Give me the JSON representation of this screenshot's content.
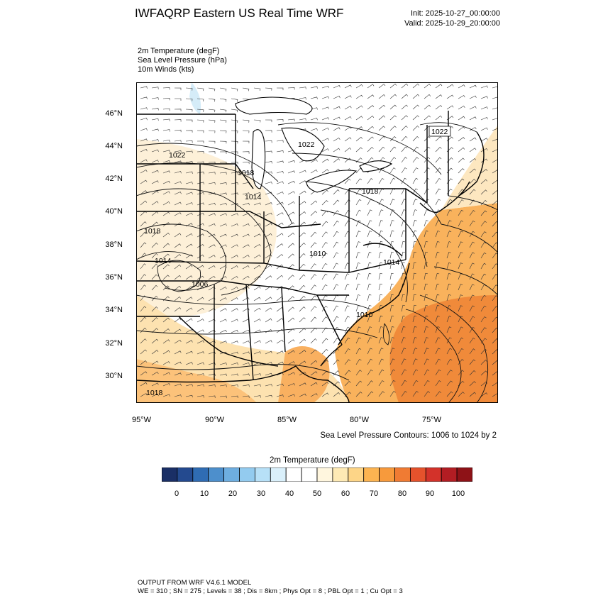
{
  "header": {
    "title": "IWFAQRP Eastern US Real Time WRF",
    "init": "Init: 2025-10-27_00:00:00",
    "valid": "Valid: 2025-10-29_20:00:00"
  },
  "fields": [
    "2m Temperature   (degF)",
    "Sea Level Pressure   (hPa)",
    "10m Winds   (kts)"
  ],
  "map": {
    "lat_labels": [
      "46°N",
      "44°N",
      "42°N",
      "40°N",
      "38°N",
      "36°N",
      "34°N",
      "32°N",
      "30°N"
    ],
    "lon_labels": [
      "95°W",
      "90°W",
      "85°W",
      "80°W",
      "75°W"
    ],
    "isobar_labels": [
      "1022",
      "1022",
      "1022",
      "1018",
      "1014",
      "1018",
      "1018",
      "1014",
      "1010",
      "1014",
      "1006",
      "1010",
      "1018"
    ],
    "colors": {
      "ocean_warm": "#f7a347",
      "ocean_hot": "#f08a3a",
      "land_mild": "#fbe3b4",
      "land_cool": "#ffffff",
      "cold": "#d5ecf8",
      "state_lines": "#000000"
    }
  },
  "contour_note": "Sea Level Pressure Contours: 1006 to 1024 by 2",
  "colorbar": {
    "title": "2m Temperature  (degF)",
    "colors": [
      "#1a2f66",
      "#244a8f",
      "#2f6cb3",
      "#4d8fcc",
      "#6eaee0",
      "#93cbef",
      "#b7e0f7",
      "#daf0fb",
      "#ffffff",
      "#ffffff",
      "#fff6de",
      "#feeab5",
      "#fdd587",
      "#fcb451",
      "#f79a3c",
      "#f07b33",
      "#e5522c",
      "#d3322a",
      "#b21d23",
      "#8e1217"
    ],
    "ticks": [
      "0",
      "10",
      "20",
      "30",
      "40",
      "50",
      "60",
      "70",
      "80",
      "90",
      "100"
    ]
  },
  "footer": {
    "line1": "OUTPUT FROM WRF V4.6.1 MODEL",
    "line2": "WE = 310 ; SN = 275 ; Levels = 38 ; Dis = 8km ; Phys Opt = 8 ; PBL Opt = 1 ; Cu Opt = 3"
  }
}
